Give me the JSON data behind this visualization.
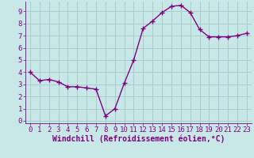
{
  "x": [
    0,
    1,
    2,
    3,
    4,
    5,
    6,
    7,
    8,
    9,
    10,
    11,
    12,
    13,
    14,
    15,
    16,
    17,
    18,
    19,
    20,
    21,
    22,
    23
  ],
  "y": [
    4.0,
    3.3,
    3.4,
    3.2,
    2.8,
    2.8,
    2.7,
    2.6,
    0.4,
    1.0,
    3.1,
    5.0,
    7.6,
    8.2,
    8.9,
    9.4,
    9.5,
    8.9,
    7.5,
    6.9,
    6.9,
    6.9,
    7.0,
    7.2
  ],
  "line_color": "#800080",
  "marker": "+",
  "marker_size": 4,
  "marker_color": "#800080",
  "bg_color": "#c8e8e8",
  "grid_color": "#b0d0d0",
  "xlabel": "Windchill (Refroidissement éolien,°C)",
  "xlabel_color": "#800080",
  "tick_color": "#800080",
  "ylim": [
    -0.2,
    9.8
  ],
  "xlim": [
    -0.5,
    23.5
  ],
  "yticks": [
    0,
    1,
    2,
    3,
    4,
    5,
    6,
    7,
    8,
    9
  ],
  "xticks": [
    0,
    1,
    2,
    3,
    4,
    5,
    6,
    7,
    8,
    9,
    10,
    11,
    12,
    13,
    14,
    15,
    16,
    17,
    18,
    19,
    20,
    21,
    22,
    23
  ],
  "linewidth": 1.0,
  "tick_fontsize": 6.5,
  "xlabel_fontsize": 7.0
}
